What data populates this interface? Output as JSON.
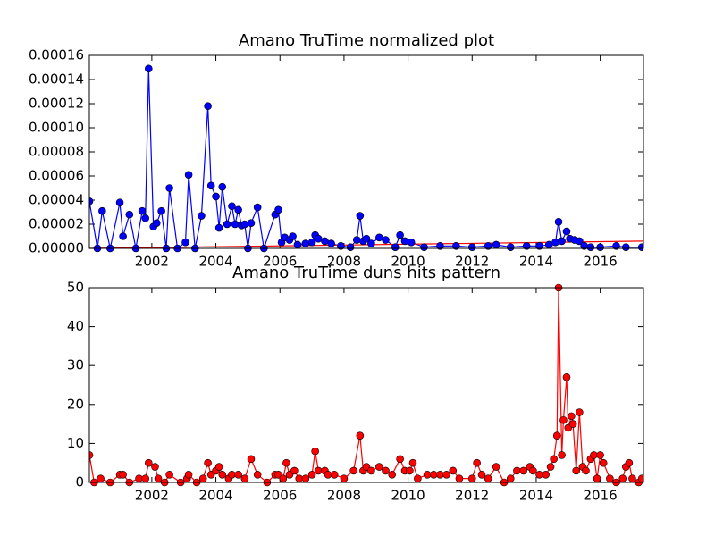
{
  "chart_data": [
    {
      "type": "line",
      "title": "Amano TruTime normalized plot",
      "color": "#0000ff",
      "x": [
        2000.05,
        2000.3,
        2000.45,
        2000.7,
        2001.0,
        2001.1,
        2001.3,
        2001.5,
        2001.7,
        2001.8,
        2001.9,
        2002.05,
        2002.15,
        2002.3,
        2002.45,
        2002.55,
        2002.8,
        2003.05,
        2003.15,
        2003.35,
        2003.55,
        2003.75,
        2003.85,
        2004.0,
        2004.1,
        2004.2,
        2004.35,
        2004.5,
        2004.6,
        2004.7,
        2004.8,
        2004.9,
        2005.0,
        2005.1,
        2005.3,
        2005.5,
        2005.85,
        2005.95,
        2006.05,
        2006.15,
        2006.3,
        2006.4,
        2006.55,
        2006.8,
        2007.0,
        2007.1,
        2007.2,
        2007.4,
        2007.6,
        2007.9,
        2008.2,
        2008.4,
        2008.5,
        2008.6,
        2008.7,
        2008.85,
        2009.1,
        2009.3,
        2009.6,
        2009.75,
        2009.9,
        2010.1,
        2010.5,
        2011.0,
        2011.5,
        2012.0,
        2012.5,
        2012.75,
        2013.2,
        2013.7,
        2014.1,
        2014.4,
        2014.6,
        2014.7,
        2014.8,
        2014.95,
        2015.05,
        2015.2,
        2015.35,
        2015.5,
        2015.7,
        2016.0,
        2016.5,
        2016.8,
        2017.3
      ],
      "values": [
        3.9e-05,
        0,
        3.1e-05,
        0,
        3.8e-05,
        1e-05,
        2.8e-05,
        0,
        3.1e-05,
        2.5e-05,
        0.000149,
        1.8e-05,
        2.1e-05,
        3.1e-05,
        0,
        5e-05,
        0,
        5e-06,
        6.1e-05,
        0,
        2.7e-05,
        0.000118,
        5.2e-05,
        4.3e-05,
        1.7e-05,
        5.1e-05,
        2e-05,
        3.5e-05,
        2e-05,
        3.2e-05,
        1.9e-05,
        2e-05,
        0,
        2.1e-05,
        3.4e-05,
        0,
        2.8e-05,
        3.2e-05,
        5e-06,
        9e-06,
        7e-06,
        1e-05,
        3e-06,
        4e-06,
        5e-06,
        1.1e-05,
        8e-06,
        6e-06,
        4e-06,
        2e-06,
        1e-06,
        7e-06,
        2.7e-05,
        6e-06,
        8e-06,
        4e-06,
        9e-06,
        7e-06,
        1e-06,
        1.1e-05,
        6e-06,
        5e-06,
        1e-06,
        2e-06,
        2e-06,
        1e-06,
        2e-06,
        3e-06,
        1e-06,
        2e-06,
        2e-06,
        3e-06,
        5e-06,
        2.2e-05,
        6e-06,
        1.4e-05,
        8e-06,
        7e-06,
        6e-06,
        2e-06,
        1e-06,
        1e-06,
        2e-06,
        1e-06,
        1e-06
      ],
      "trend": {
        "color": "#ff0000",
        "x": [
          2000.05,
          2017.35
        ],
        "values": [
          0,
          6e-06
        ]
      },
      "xlim": [
        2000.05,
        2017.35
      ],
      "xticks": [
        2002,
        2004,
        2006,
        2008,
        2010,
        2012,
        2014,
        2016
      ],
      "ylim": [
        0,
        0.00016
      ],
      "yticks": [
        {
          "value": 0,
          "label": "0.00000"
        },
        {
          "value": 2e-05,
          "label": "0.00002"
        },
        {
          "value": 4e-05,
          "label": "0.00004"
        },
        {
          "value": 6e-05,
          "label": "0.00006"
        },
        {
          "value": 8e-05,
          "label": "0.00008"
        },
        {
          "value": 0.0001,
          "label": "0.00010"
        },
        {
          "value": 0.00012,
          "label": "0.00012"
        },
        {
          "value": 0.00014,
          "label": "0.00014"
        },
        {
          "value": 0.00016,
          "label": "0.00016"
        }
      ]
    },
    {
      "type": "line",
      "title": "Amano TruTime duns hits pattern",
      "color": "#ff0000",
      "x": [
        2000.05,
        2000.2,
        2000.4,
        2000.7,
        2001.0,
        2001.1,
        2001.3,
        2001.6,
        2001.8,
        2001.9,
        2002.1,
        2002.2,
        2002.4,
        2002.55,
        2002.9,
        2003.1,
        2003.15,
        2003.4,
        2003.6,
        2003.75,
        2003.85,
        2004.0,
        2004.1,
        2004.2,
        2004.4,
        2004.5,
        2004.7,
        2004.9,
        2005.1,
        2005.3,
        2005.6,
        2005.85,
        2005.95,
        2006.1,
        2006.2,
        2006.3,
        2006.45,
        2006.6,
        2006.8,
        2007.0,
        2007.1,
        2007.2,
        2007.4,
        2007.5,
        2007.7,
        2008.0,
        2008.3,
        2008.5,
        2008.6,
        2008.7,
        2008.85,
        2009.1,
        2009.3,
        2009.5,
        2009.75,
        2009.9,
        2010.05,
        2010.15,
        2010.3,
        2010.6,
        2010.8,
        2011.0,
        2011.2,
        2011.4,
        2011.6,
        2012.0,
        2012.15,
        2012.3,
        2012.5,
        2012.75,
        2013.0,
        2013.2,
        2013.4,
        2013.6,
        2013.8,
        2013.9,
        2014.1,
        2014.3,
        2014.45,
        2014.55,
        2014.65,
        2014.7,
        2014.8,
        2014.85,
        2014.95,
        2015.0,
        2015.1,
        2015.15,
        2015.25,
        2015.35,
        2015.45,
        2015.55,
        2015.7,
        2015.8,
        2015.9,
        2016.0,
        2016.1,
        2016.3,
        2016.5,
        2016.7,
        2016.8,
        2016.9,
        2017.0,
        2017.2,
        2017.3
      ],
      "values": [
        7,
        0,
        1,
        0,
        2,
        2,
        0,
        1,
        1,
        5,
        4,
        1,
        0,
        2,
        0,
        1,
        2,
        0,
        1,
        5,
        2,
        3,
        4,
        2,
        1,
        2,
        2,
        1,
        6,
        2,
        0,
        2,
        2,
        1,
        5,
        2,
        3,
        1,
        1,
        2,
        8,
        3,
        3,
        2,
        2,
        1,
        3,
        12,
        3,
        4,
        3,
        4,
        3,
        2,
        6,
        3,
        3,
        5,
        1,
        2,
        2,
        2,
        2,
        3,
        1,
        1,
        5,
        2,
        1,
        4,
        0,
        1,
        3,
        3,
        4,
        3,
        2,
        2,
        4,
        6,
        12,
        50,
        7,
        16,
        27,
        14,
        17,
        15,
        3,
        18,
        4,
        3,
        6,
        7,
        1,
        7,
        5,
        1,
        0,
        1,
        4,
        5,
        1,
        0,
        1
      ],
      "xlim": [
        2000.05,
        2017.35
      ],
      "xticks": [
        2002,
        2004,
        2006,
        2008,
        2010,
        2012,
        2014,
        2016
      ],
      "ylim": [
        0,
        50
      ],
      "yticks": [
        0,
        10,
        20,
        30,
        40,
        50
      ]
    }
  ]
}
